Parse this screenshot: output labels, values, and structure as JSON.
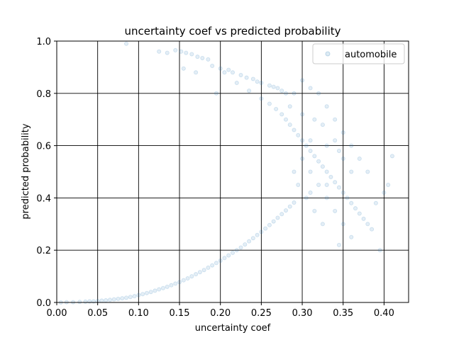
{
  "chart_data": {
    "type": "scatter",
    "title": "uncertainty coef vs predicted probability",
    "xlabel": "uncertainty coef",
    "ylabel": "predicted probability",
    "xlim": [
      0.0,
      0.43
    ],
    "ylim": [
      0.0,
      1.0
    ],
    "xticks": [
      "0.00",
      "0.05",
      "0.10",
      "0.15",
      "0.20",
      "0.25",
      "0.30",
      "0.35",
      "0.40"
    ],
    "yticks": [
      "0.0",
      "0.2",
      "0.4",
      "0.6",
      "0.8",
      "1.0"
    ],
    "grid": true,
    "legend_position": "top-right",
    "series": [
      {
        "name": "automobile",
        "color": "#1f77b4",
        "opacity": 0.12,
        "points": [
          [
            0.005,
            0.0
          ],
          [
            0.012,
            0.001
          ],
          [
            0.02,
            0.001
          ],
          [
            0.028,
            0.002
          ],
          [
            0.035,
            0.003
          ],
          [
            0.04,
            0.004
          ],
          [
            0.045,
            0.004
          ],
          [
            0.05,
            0.005
          ],
          [
            0.055,
            0.007
          ],
          [
            0.06,
            0.008
          ],
          [
            0.065,
            0.01
          ],
          [
            0.07,
            0.012
          ],
          [
            0.075,
            0.014
          ],
          [
            0.08,
            0.016
          ],
          [
            0.085,
            0.018
          ],
          [
            0.09,
            0.021
          ],
          [
            0.095,
            0.024
          ],
          [
            0.1,
            0.028
          ],
          [
            0.105,
            0.032
          ],
          [
            0.11,
            0.036
          ],
          [
            0.115,
            0.04
          ],
          [
            0.12,
            0.045
          ],
          [
            0.125,
            0.05
          ],
          [
            0.13,
            0.055
          ],
          [
            0.135,
            0.06
          ],
          [
            0.14,
            0.066
          ],
          [
            0.145,
            0.072
          ],
          [
            0.15,
            0.078
          ],
          [
            0.155,
            0.085
          ],
          [
            0.16,
            0.092
          ],
          [
            0.165,
            0.1
          ],
          [
            0.17,
            0.108
          ],
          [
            0.175,
            0.116
          ],
          [
            0.18,
            0.124
          ],
          [
            0.185,
            0.133
          ],
          [
            0.19,
            0.142
          ],
          [
            0.195,
            0.151
          ],
          [
            0.2,
            0.16
          ],
          [
            0.205,
            0.17
          ],
          [
            0.21,
            0.18
          ],
          [
            0.215,
            0.19
          ],
          [
            0.22,
            0.2
          ],
          [
            0.225,
            0.21
          ],
          [
            0.23,
            0.222
          ],
          [
            0.235,
            0.234
          ],
          [
            0.24,
            0.246
          ],
          [
            0.245,
            0.258
          ],
          [
            0.25,
            0.27
          ],
          [
            0.255,
            0.283
          ],
          [
            0.26,
            0.296
          ],
          [
            0.265,
            0.31
          ],
          [
            0.27,
            0.324
          ],
          [
            0.275,
            0.338
          ],
          [
            0.28,
            0.352
          ],
          [
            0.285,
            0.367
          ],
          [
            0.29,
            0.382
          ],
          [
            0.085,
            0.99
          ],
          [
            0.125,
            0.96
          ],
          [
            0.135,
            0.955
          ],
          [
            0.145,
            0.965
          ],
          [
            0.152,
            0.96
          ],
          [
            0.158,
            0.955
          ],
          [
            0.165,
            0.95
          ],
          [
            0.172,
            0.94
          ],
          [
            0.178,
            0.935
          ],
          [
            0.185,
            0.93
          ],
          [
            0.19,
            0.905
          ],
          [
            0.2,
            0.895
          ],
          [
            0.21,
            0.89
          ],
          [
            0.215,
            0.88
          ],
          [
            0.225,
            0.87
          ],
          [
            0.232,
            0.86
          ],
          [
            0.24,
            0.855
          ],
          [
            0.245,
            0.845
          ],
          [
            0.25,
            0.84
          ],
          [
            0.26,
            0.83
          ],
          [
            0.265,
            0.825
          ],
          [
            0.27,
            0.82
          ],
          [
            0.275,
            0.81
          ],
          [
            0.28,
            0.8
          ],
          [
            0.155,
            0.895
          ],
          [
            0.17,
            0.88
          ],
          [
            0.195,
            0.8
          ],
          [
            0.205,
            0.88
          ],
          [
            0.22,
            0.84
          ],
          [
            0.235,
            0.81
          ],
          [
            0.25,
            0.78
          ],
          [
            0.26,
            0.76
          ],
          [
            0.268,
            0.74
          ],
          [
            0.275,
            0.72
          ],
          [
            0.28,
            0.7
          ],
          [
            0.285,
            0.68
          ],
          [
            0.29,
            0.66
          ],
          [
            0.295,
            0.64
          ],
          [
            0.3,
            0.62
          ],
          [
            0.305,
            0.6
          ],
          [
            0.31,
            0.58
          ],
          [
            0.315,
            0.56
          ],
          [
            0.32,
            0.54
          ],
          [
            0.325,
            0.52
          ],
          [
            0.33,
            0.5
          ],
          [
            0.335,
            0.48
          ],
          [
            0.34,
            0.46
          ],
          [
            0.345,
            0.44
          ],
          [
            0.35,
            0.42
          ],
          [
            0.355,
            0.4
          ],
          [
            0.36,
            0.38
          ],
          [
            0.365,
            0.36
          ],
          [
            0.37,
            0.34
          ],
          [
            0.375,
            0.32
          ],
          [
            0.38,
            0.3
          ],
          [
            0.385,
            0.28
          ],
          [
            0.395,
            0.2
          ],
          [
            0.41,
            0.56
          ],
          [
            0.405,
            0.45
          ],
          [
            0.4,
            0.42
          ],
          [
            0.39,
            0.38
          ],
          [
            0.38,
            0.5
          ],
          [
            0.37,
            0.55
          ],
          [
            0.36,
            0.6
          ],
          [
            0.35,
            0.65
          ],
          [
            0.34,
            0.7
          ],
          [
            0.33,
            0.75
          ],
          [
            0.32,
            0.8
          ],
          [
            0.31,
            0.82
          ],
          [
            0.3,
            0.85
          ],
          [
            0.29,
            0.8
          ],
          [
            0.285,
            0.75
          ],
          [
            0.3,
            0.55
          ],
          [
            0.31,
            0.5
          ],
          [
            0.32,
            0.45
          ],
          [
            0.33,
            0.4
          ],
          [
            0.34,
            0.35
          ],
          [
            0.35,
            0.3
          ],
          [
            0.36,
            0.25
          ],
          [
            0.345,
            0.22
          ],
          [
            0.325,
            0.3
          ],
          [
            0.315,
            0.35
          ],
          [
            0.305,
            0.4
          ],
          [
            0.295,
            0.45
          ],
          [
            0.29,
            0.5
          ],
          [
            0.31,
            0.62
          ],
          [
            0.33,
            0.6
          ],
          [
            0.35,
            0.55
          ],
          [
            0.36,
            0.5
          ],
          [
            0.325,
            0.68
          ],
          [
            0.34,
            0.62
          ],
          [
            0.3,
            0.72
          ],
          [
            0.315,
            0.7
          ],
          [
            0.345,
            0.58
          ],
          [
            0.33,
            0.45
          ],
          [
            0.31,
            0.42
          ]
        ]
      }
    ]
  }
}
